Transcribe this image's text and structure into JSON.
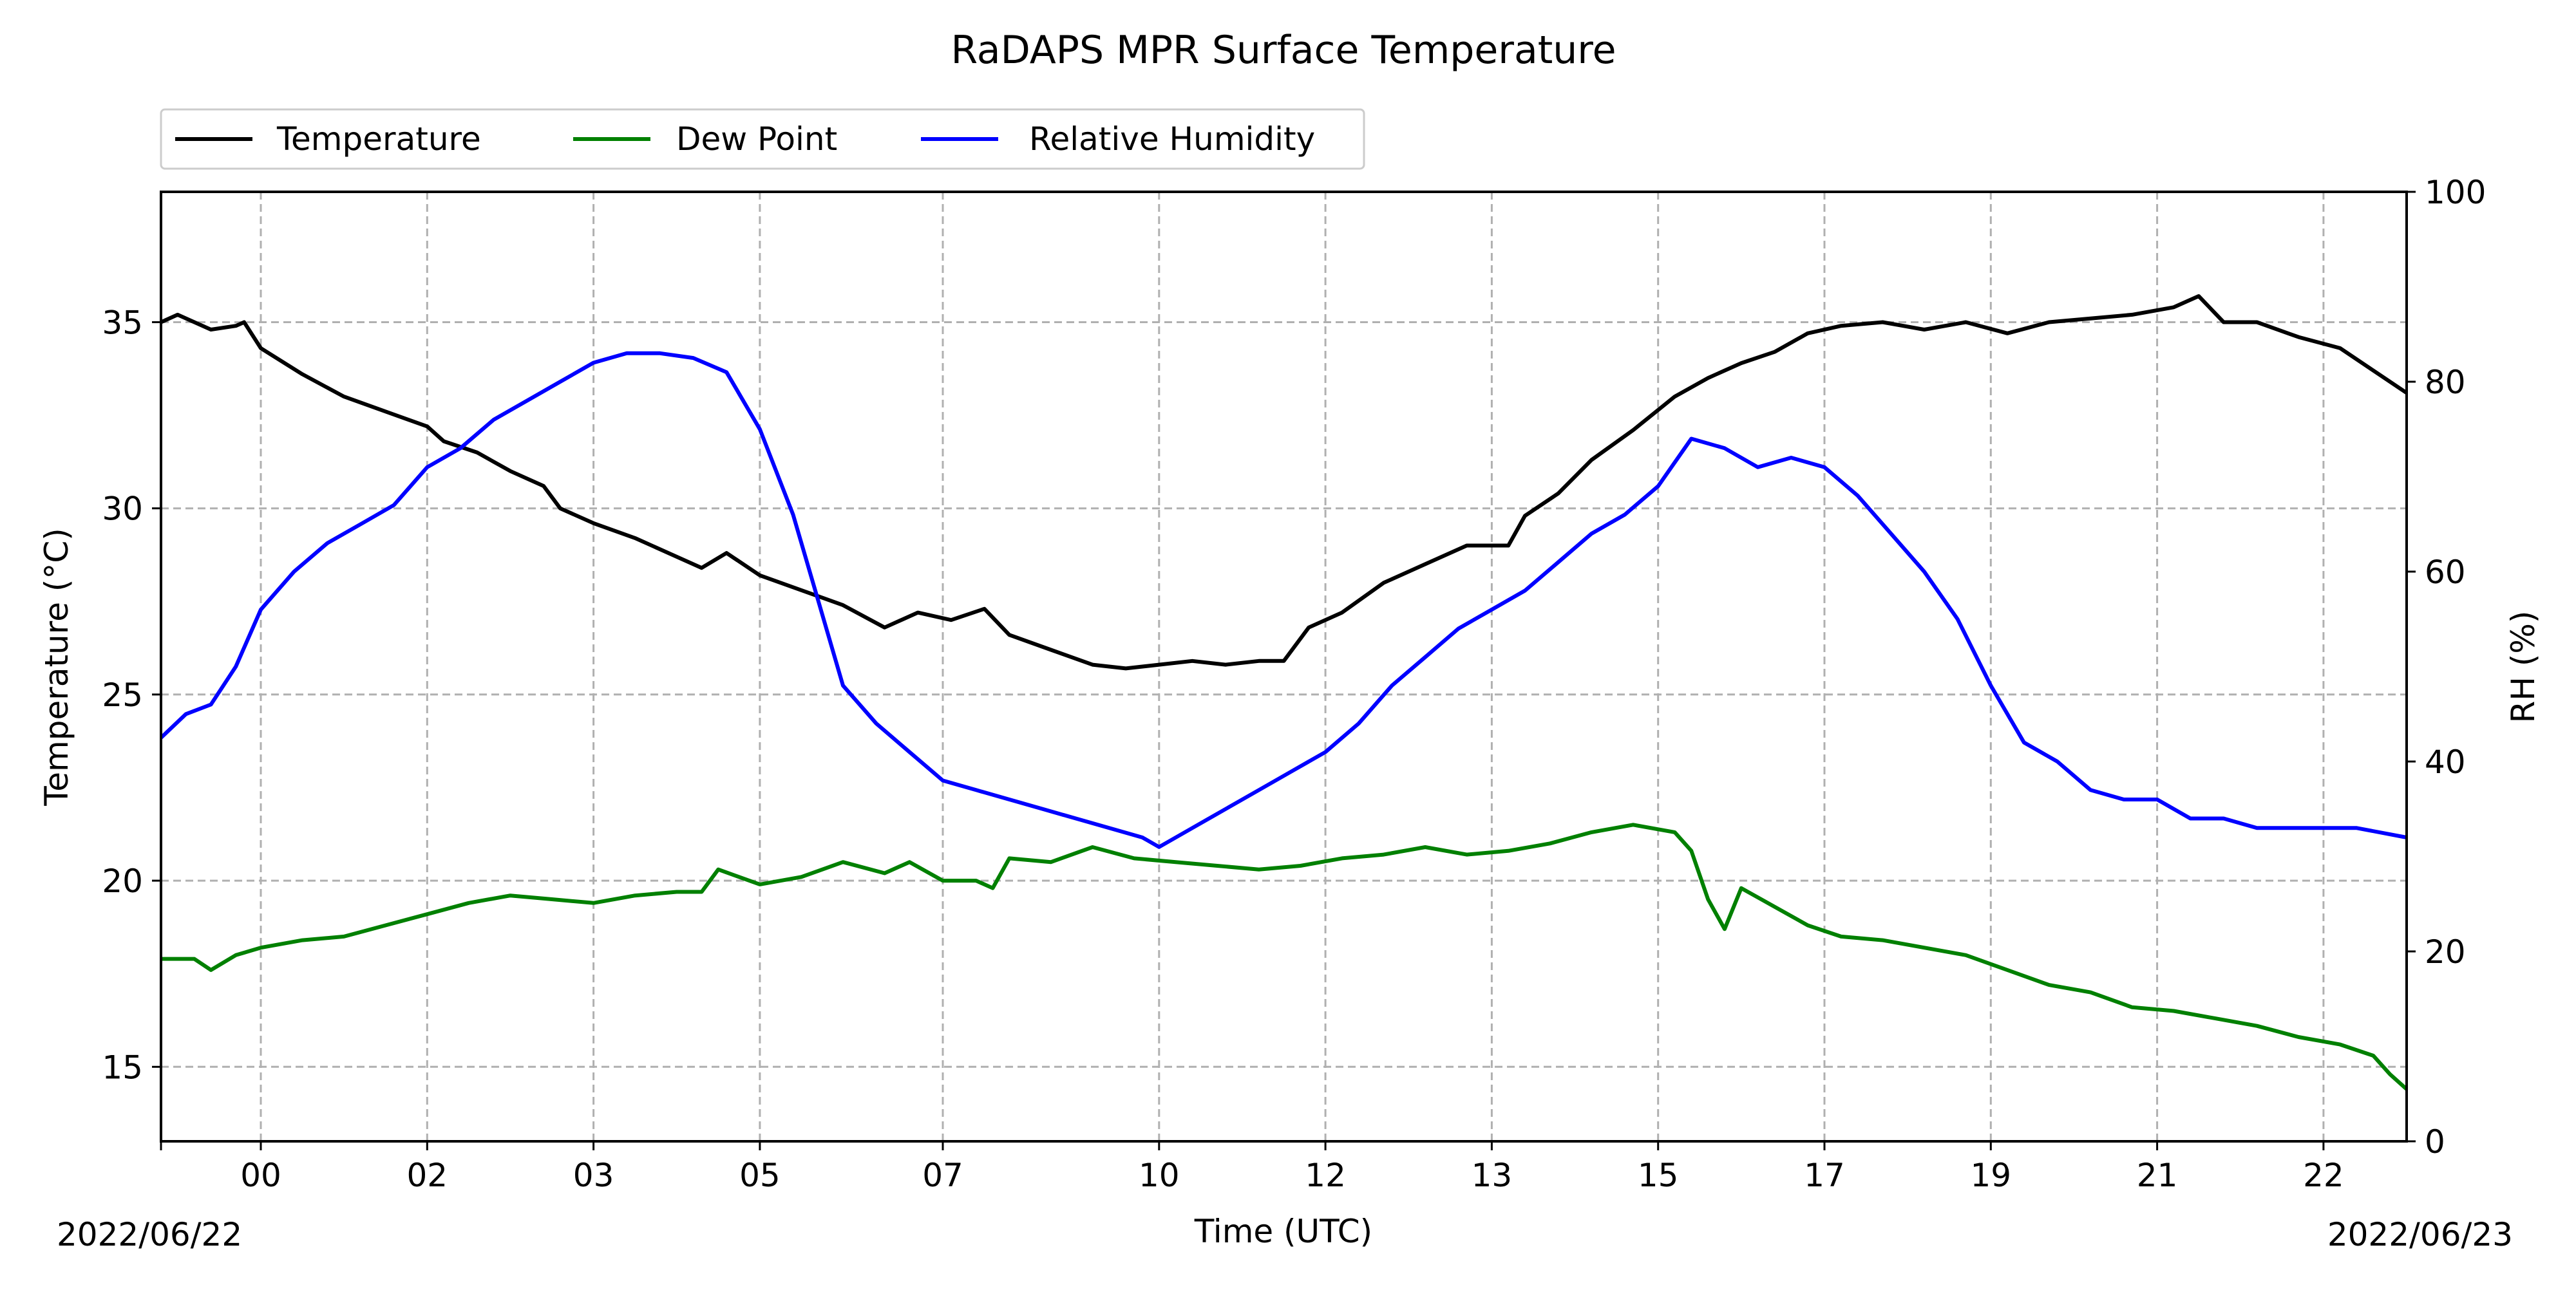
{
  "chart_data": {
    "type": "line",
    "title": "RaDAPS MPR Surface Temperature",
    "xlabel": "Time (UTC)",
    "ylabel_left": "Temperature ($^\\circ$C)",
    "ylabel_left_display": "Temperature (°C)",
    "ylabel_right": "RH (%)",
    "x_unit": "hours (UTC) from 2022/06/22 00:00",
    "xlim": [
      -1.2,
      25.8
    ],
    "ylim_left": [
      13,
      38.5
    ],
    "ylim_right": [
      0,
      100
    ],
    "x_ticks": [
      {
        "x": 0,
        "label": "00"
      },
      {
        "x": 2,
        "label": "02"
      },
      {
        "x": 4,
        "label": "03"
      },
      {
        "x": 6,
        "label": "05"
      },
      {
        "x": 8.2,
        "label": "07"
      },
      {
        "x": 10.8,
        "label": "10"
      },
      {
        "x": 12.8,
        "label": "12"
      },
      {
        "x": 14.8,
        "label": "13"
      },
      {
        "x": 16.8,
        "label": "15"
      },
      {
        "x": 18.8,
        "label": "17"
      },
      {
        "x": 20.8,
        "label": "19"
      },
      {
        "x": 22.8,
        "label": "21"
      },
      {
        "x": 24.8,
        "label": "22"
      }
    ],
    "x_date_labels": {
      "left": "2022/06/22",
      "right": "2022/06/23"
    },
    "y_ticks_left": [
      15,
      20,
      25,
      30,
      35
    ],
    "y_ticks_right": [
      0,
      20,
      40,
      60,
      80,
      100
    ],
    "grid": true,
    "legend_position": "top-left (outside, above axes)",
    "colors": {
      "temperature": "#000000",
      "dew_point": "#008000",
      "relative_humidity": "#0000ff",
      "grid": "#b0b0b0"
    },
    "series": [
      {
        "name": "Temperature",
        "axis": "left",
        "color": "#000000",
        "points": [
          [
            -1.2,
            35.0
          ],
          [
            -1.0,
            35.2
          ],
          [
            -0.6,
            34.8
          ],
          [
            -0.3,
            34.9
          ],
          [
            -0.2,
            35.0
          ],
          [
            0.0,
            34.3
          ],
          [
            0.5,
            33.6
          ],
          [
            1.0,
            33.0
          ],
          [
            1.5,
            32.6
          ],
          [
            2.0,
            32.2
          ],
          [
            2.2,
            31.8
          ],
          [
            2.6,
            31.5
          ],
          [
            3.0,
            31.0
          ],
          [
            3.4,
            30.6
          ],
          [
            3.6,
            30.0
          ],
          [
            4.0,
            29.6
          ],
          [
            4.5,
            29.2
          ],
          [
            5.0,
            28.7
          ],
          [
            5.3,
            28.4
          ],
          [
            5.6,
            28.8
          ],
          [
            6.0,
            28.2
          ],
          [
            6.5,
            27.8
          ],
          [
            7.0,
            27.4
          ],
          [
            7.5,
            26.8
          ],
          [
            7.9,
            27.2
          ],
          [
            8.3,
            27.0
          ],
          [
            8.7,
            27.3
          ],
          [
            9.0,
            26.6
          ],
          [
            9.5,
            26.2
          ],
          [
            10.0,
            25.8
          ],
          [
            10.4,
            25.7
          ],
          [
            10.8,
            25.8
          ],
          [
            11.2,
            25.9
          ],
          [
            11.6,
            25.8
          ],
          [
            12.0,
            25.9
          ],
          [
            12.3,
            25.9
          ],
          [
            12.6,
            26.8
          ],
          [
            13.0,
            27.2
          ],
          [
            13.5,
            28.0
          ],
          [
            14.0,
            28.5
          ],
          [
            14.5,
            29.0
          ],
          [
            15.0,
            29.0
          ],
          [
            15.2,
            29.8
          ],
          [
            15.6,
            30.4
          ],
          [
            16.0,
            31.3
          ],
          [
            16.5,
            32.1
          ],
          [
            17.0,
            33.0
          ],
          [
            17.4,
            33.5
          ],
          [
            17.8,
            33.9
          ],
          [
            18.2,
            34.2
          ],
          [
            18.6,
            34.7
          ],
          [
            19.0,
            34.9
          ],
          [
            19.5,
            35.0
          ],
          [
            20.0,
            34.8
          ],
          [
            20.5,
            35.0
          ],
          [
            21.0,
            34.7
          ],
          [
            21.5,
            35.0
          ],
          [
            22.0,
            35.1
          ],
          [
            22.5,
            35.2
          ],
          [
            23.0,
            35.4
          ],
          [
            23.3,
            35.7
          ],
          [
            23.6,
            35.0
          ],
          [
            24.0,
            35.0
          ],
          [
            24.5,
            34.6
          ],
          [
            25.0,
            34.3
          ],
          [
            25.4,
            33.7
          ],
          [
            25.8,
            33.1
          ]
        ]
      },
      {
        "name": "Dew Point",
        "axis": "left",
        "color": "#008000",
        "points": [
          [
            -1.2,
            17.9
          ],
          [
            -0.8,
            17.9
          ],
          [
            -0.6,
            17.6
          ],
          [
            -0.3,
            18.0
          ],
          [
            0.0,
            18.2
          ],
          [
            0.5,
            18.4
          ],
          [
            1.0,
            18.5
          ],
          [
            1.5,
            18.8
          ],
          [
            2.0,
            19.1
          ],
          [
            2.5,
            19.4
          ],
          [
            3.0,
            19.6
          ],
          [
            3.5,
            19.5
          ],
          [
            4.0,
            19.4
          ],
          [
            4.5,
            19.6
          ],
          [
            5.0,
            19.7
          ],
          [
            5.3,
            19.7
          ],
          [
            5.5,
            20.3
          ],
          [
            6.0,
            19.9
          ],
          [
            6.5,
            20.1
          ],
          [
            7.0,
            20.5
          ],
          [
            7.5,
            20.2
          ],
          [
            7.8,
            20.5
          ],
          [
            8.2,
            20.0
          ],
          [
            8.6,
            20.0
          ],
          [
            8.8,
            19.8
          ],
          [
            9.0,
            20.6
          ],
          [
            9.5,
            20.5
          ],
          [
            10.0,
            20.9
          ],
          [
            10.5,
            20.6
          ],
          [
            11.0,
            20.5
          ],
          [
            11.5,
            20.4
          ],
          [
            12.0,
            20.3
          ],
          [
            12.5,
            20.4
          ],
          [
            13.0,
            20.6
          ],
          [
            13.5,
            20.7
          ],
          [
            14.0,
            20.9
          ],
          [
            14.5,
            20.7
          ],
          [
            15.0,
            20.8
          ],
          [
            15.5,
            21.0
          ],
          [
            16.0,
            21.3
          ],
          [
            16.5,
            21.5
          ],
          [
            17.0,
            21.3
          ],
          [
            17.2,
            20.8
          ],
          [
            17.4,
            19.5
          ],
          [
            17.6,
            18.7
          ],
          [
            17.8,
            19.8
          ],
          [
            18.2,
            19.3
          ],
          [
            18.6,
            18.8
          ],
          [
            19.0,
            18.5
          ],
          [
            19.5,
            18.4
          ],
          [
            20.0,
            18.2
          ],
          [
            20.5,
            18.0
          ],
          [
            21.0,
            17.6
          ],
          [
            21.5,
            17.2
          ],
          [
            22.0,
            17.0
          ],
          [
            22.5,
            16.6
          ],
          [
            23.0,
            16.5
          ],
          [
            23.5,
            16.3
          ],
          [
            24.0,
            16.1
          ],
          [
            24.5,
            15.8
          ],
          [
            25.0,
            15.6
          ],
          [
            25.4,
            15.3
          ],
          [
            25.6,
            14.8
          ],
          [
            25.8,
            14.4
          ]
        ]
      },
      {
        "name": "Relative Humidity",
        "axis": "right",
        "color": "#0000ff",
        "points": [
          [
            -1.2,
            42.5
          ],
          [
            -0.9,
            45.0
          ],
          [
            -0.6,
            46.0
          ],
          [
            -0.3,
            50.0
          ],
          [
            0.0,
            56.0
          ],
          [
            0.4,
            60.0
          ],
          [
            0.8,
            63.0
          ],
          [
            1.2,
            65.0
          ],
          [
            1.6,
            67.0
          ],
          [
            2.0,
            71.0
          ],
          [
            2.4,
            73.0
          ],
          [
            2.8,
            76.0
          ],
          [
            3.2,
            78.0
          ],
          [
            3.6,
            80.0
          ],
          [
            4.0,
            82.0
          ],
          [
            4.4,
            83.0
          ],
          [
            4.8,
            83.0
          ],
          [
            5.2,
            82.5
          ],
          [
            5.6,
            81.0
          ],
          [
            6.0,
            75.0
          ],
          [
            6.4,
            66.0
          ],
          [
            6.7,
            57.0
          ],
          [
            7.0,
            48.0
          ],
          [
            7.4,
            44.0
          ],
          [
            7.8,
            41.0
          ],
          [
            8.2,
            38.0
          ],
          [
            8.6,
            37.0
          ],
          [
            9.0,
            36.0
          ],
          [
            9.4,
            35.0
          ],
          [
            9.8,
            34.0
          ],
          [
            10.2,
            33.0
          ],
          [
            10.6,
            32.0
          ],
          [
            10.8,
            31.0
          ],
          [
            11.2,
            33.0
          ],
          [
            11.6,
            35.0
          ],
          [
            12.0,
            37.0
          ],
          [
            12.4,
            39.0
          ],
          [
            12.8,
            41.0
          ],
          [
            13.2,
            44.0
          ],
          [
            13.6,
            48.0
          ],
          [
            14.0,
            51.0
          ],
          [
            14.4,
            54.0
          ],
          [
            14.8,
            56.0
          ],
          [
            15.2,
            58.0
          ],
          [
            15.6,
            61.0
          ],
          [
            16.0,
            64.0
          ],
          [
            16.4,
            66.0
          ],
          [
            16.8,
            69.0
          ],
          [
            17.2,
            74.0
          ],
          [
            17.6,
            73.0
          ],
          [
            18.0,
            71.0
          ],
          [
            18.4,
            72.0
          ],
          [
            18.8,
            71.0
          ],
          [
            19.2,
            68.0
          ],
          [
            19.6,
            64.0
          ],
          [
            20.0,
            60.0
          ],
          [
            20.4,
            55.0
          ],
          [
            20.8,
            48.0
          ],
          [
            21.2,
            42.0
          ],
          [
            21.6,
            40.0
          ],
          [
            22.0,
            37.0
          ],
          [
            22.4,
            36.0
          ],
          [
            22.8,
            36.0
          ],
          [
            23.2,
            34.0
          ],
          [
            23.6,
            34.0
          ],
          [
            24.0,
            33.0
          ],
          [
            24.4,
            33.0
          ],
          [
            24.8,
            33.0
          ],
          [
            25.2,
            33.0
          ],
          [
            25.8,
            32.0
          ]
        ]
      }
    ]
  }
}
